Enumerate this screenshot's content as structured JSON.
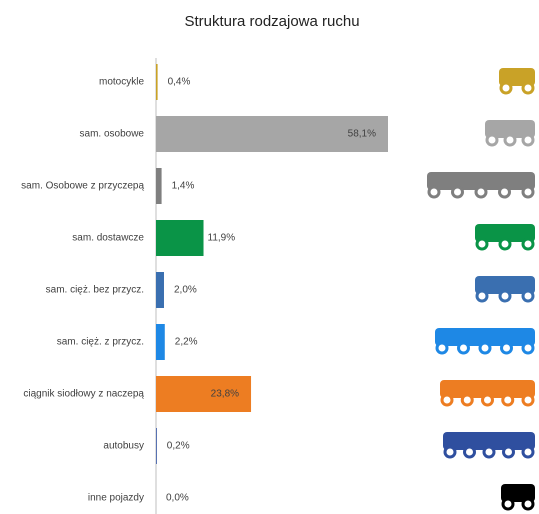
{
  "chart_data": {
    "type": "bar",
    "orientation": "horizontal",
    "title": "Struktura rodzajowa ruchu",
    "categories": [
      "motocykle",
      "sam. osobowe",
      "sam. Osobowe z przyczepą",
      "sam. dostawcze",
      "sam. cięż. bez przycz.",
      "sam. cięż. z przycz.",
      "ciągnik siodłowy z naczepą",
      "autobusy",
      "inne pojazdy"
    ],
    "values": [
      0.4,
      58.1,
      1.4,
      11.9,
      2.0,
      2.2,
      23.8,
      0.2,
      0.0
    ],
    "value_labels": [
      "0,4%",
      "58,1%",
      "1,4%",
      "11,9%",
      "2,0%",
      "2,2%",
      "23,8%",
      "0,2%",
      "0,0%"
    ],
    "colors": [
      "#c9a227",
      "#a6a6a6",
      "#7f7f7f",
      "#0a9447",
      "#3a6fb0",
      "#1e88e5",
      "#ed7d22",
      "#2f4f9f",
      "#000000"
    ]
  }
}
